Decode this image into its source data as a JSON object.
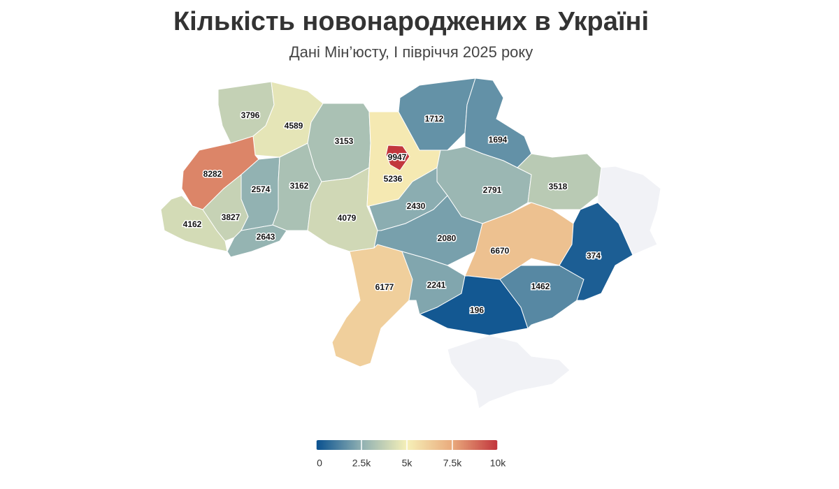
{
  "chart_data": {
    "type": "choropleth",
    "title": "Кількість новонароджених в Україні",
    "subtitle": "Дані Мін’юсту, І півріччя 2025 року",
    "values": [
      3796,
      4589,
      8282,
      4162,
      3827,
      2643,
      2574,
      3162,
      3153,
      4079,
      5236,
      9947,
      1712,
      1694,
      2791,
      3518,
      2430,
      2080,
      6177,
      2241,
      6670,
      196,
      1462,
      374
    ],
    "colorscale": [
      "#08508f",
      "#8fb0b2",
      "#f6f0b8",
      "#e9aa7c",
      "#c1343c"
    ],
    "zlim": [
      0,
      10000
    ],
    "zticks": [
      0,
      {
        "value": 2500,
        "label": "2.5k"
      },
      {
        "value": 5000,
        "label": "5k"
      },
      {
        "value": 7500,
        "label": "7.5k"
      },
      {
        "value": 10000,
        "label": "10k"
      }
    ]
  }
}
